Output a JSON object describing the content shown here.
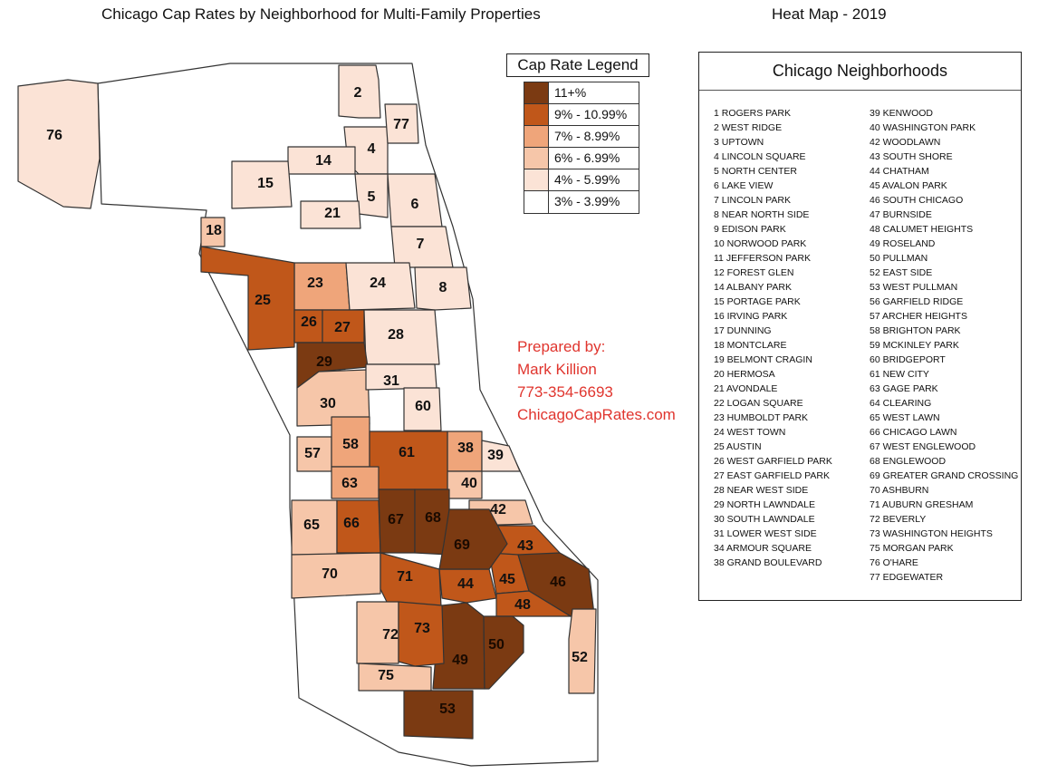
{
  "title": "Chicago Cap Rates by Neighborhood for Multi-Family Properties",
  "subtitle": "Heat Map - 2019",
  "legend": {
    "title": "Cap Rate Legend",
    "items": [
      {
        "label": "11+%",
        "color": "#7b3a12"
      },
      {
        "label": "9% - 10.99%",
        "color": "#c0571a"
      },
      {
        "label": "7% - 8.99%",
        "color": "#efa57a"
      },
      {
        "label": "6% - 6.99%",
        "color": "#f6c6a9"
      },
      {
        "label": "4% - 5.99%",
        "color": "#fbe3d6"
      },
      {
        "label": "3% - 3.99%",
        "color": "#ffffff"
      }
    ]
  },
  "prepared_by": {
    "label": "Prepared by:",
    "name": "Mark Killion",
    "phone": "773-354-6693",
    "website": "ChicagoCapRates.com"
  },
  "neighborhoods_panel": {
    "title": "Chicago Neighborhoods",
    "items": [
      "1 ROGERS PARK",
      "2 WEST RIDGE",
      "3 UPTOWN",
      "4 LINCOLN SQUARE",
      "5 NORTH CENTER",
      "6 LAKE VIEW",
      "7 LINCOLN PARK",
      "8 NEAR NORTH SIDE",
      "9 EDISON PARK",
      "10 NORWOOD PARK",
      "11 JEFFERSON PARK",
      "12 FOREST GLEN",
      "14 ALBANY PARK",
      "15 PORTAGE PARK",
      "16 IRVING PARK",
      "17 DUNNING",
      "18 MONTCLARE",
      "19 BELMONT CRAGIN",
      "20 HERMOSA",
      "21 AVONDALE",
      "22 LOGAN SQUARE",
      "23 HUMBOLDT PARK",
      "24 WEST TOWN",
      "25 AUSTIN",
      "26 WEST GARFIELD PARK",
      "27 EAST GARFIELD PARK",
      "28 NEAR WEST SIDE",
      "29 NORTH LAWNDALE",
      "30 SOUTH LAWNDALE",
      "31 LOWER WEST SIDE",
      "34 ARMOUR SQUARE",
      "38 GRAND BOULEVARD",
      "39 KENWOOD",
      "40 WASHINGTON PARK",
      "42 WOODLAWN",
      "43 SOUTH SHORE",
      "44 CHATHAM",
      "45 AVALON PARK",
      "46 SOUTH CHICAGO",
      "47 BURNSIDE",
      "48 CALUMET HEIGHTS",
      "49 ROSELAND",
      "50 PULLMAN",
      "52 EAST SIDE",
      "53 WEST PULLMAN",
      "56 GARFIELD RIDGE",
      "57 ARCHER HEIGHTS",
      "58 BRIGHTON PARK",
      "59 MCKINLEY PARK",
      "60 BRIDGEPORT",
      "61 NEW CITY",
      "63 GAGE PARK",
      "64 CLEARING",
      "65 WEST LAWN",
      "66 CHICAGO LAWN",
      "67 WEST ENGLEWOOD",
      "68 ENGLEWOOD",
      "69 GREATER GRAND CROSSING",
      "70 ASHBURN",
      "71 AUBURN GRESHAM",
      "72 BEVERLY",
      "73 WASHINGTON HEIGHTS",
      "75 MORGAN PARK",
      "76 O'HARE",
      "77 EDGEWATER"
    ]
  },
  "map_regions": [
    {
      "id": "2",
      "label": "2",
      "rate_class": "4% - 5.99%"
    },
    {
      "id": "4",
      "label": "4",
      "rate_class": "4% - 5.99%"
    },
    {
      "id": "5",
      "label": "5",
      "rate_class": "4% - 5.99%"
    },
    {
      "id": "6",
      "label": "6",
      "rate_class": "4% - 5.99%"
    },
    {
      "id": "7",
      "label": "7",
      "rate_class": "4% - 5.99%"
    },
    {
      "id": "8",
      "label": "8",
      "rate_class": "4% - 5.99%"
    },
    {
      "id": "14",
      "label": "14",
      "rate_class": "4% - 5.99%"
    },
    {
      "id": "15",
      "label": "15",
      "rate_class": "4% - 5.99%"
    },
    {
      "id": "18",
      "label": "18",
      "rate_class": "6% - 6.99%"
    },
    {
      "id": "21",
      "label": "21",
      "rate_class": "4% - 5.99%"
    },
    {
      "id": "23",
      "label": "23",
      "rate_class": "7% - 8.99%"
    },
    {
      "id": "24",
      "label": "24",
      "rate_class": "4% - 5.99%"
    },
    {
      "id": "25",
      "label": "25",
      "rate_class": "9% - 10.99%"
    },
    {
      "id": "26",
      "label": "26",
      "rate_class": "9% - 10.99%"
    },
    {
      "id": "27",
      "label": "27",
      "rate_class": "9% - 10.99%"
    },
    {
      "id": "28",
      "label": "28",
      "rate_class": "4% - 5.99%"
    },
    {
      "id": "29",
      "label": "29",
      "rate_class": "11+%"
    },
    {
      "id": "30",
      "label": "30",
      "rate_class": "6% - 6.99%"
    },
    {
      "id": "31",
      "label": "31",
      "rate_class": "4% - 5.99%"
    },
    {
      "id": "38",
      "label": "38",
      "rate_class": "7% - 8.99%"
    },
    {
      "id": "39",
      "label": "39",
      "rate_class": "4% - 5.99%"
    },
    {
      "id": "40",
      "label": "40",
      "rate_class": "6% - 6.99%"
    },
    {
      "id": "42",
      "label": "42",
      "rate_class": "6% - 6.99%"
    },
    {
      "id": "43",
      "label": "43",
      "rate_class": "9% - 10.99%"
    },
    {
      "id": "44",
      "label": "44",
      "rate_class": "9% - 10.99%"
    },
    {
      "id": "45",
      "label": "45",
      "rate_class": "9% - 10.99%"
    },
    {
      "id": "46",
      "label": "46",
      "rate_class": "11+%"
    },
    {
      "id": "48",
      "label": "48",
      "rate_class": "9% - 10.99%"
    },
    {
      "id": "49",
      "label": "49",
      "rate_class": "11+%"
    },
    {
      "id": "50",
      "label": "50",
      "rate_class": "11+%"
    },
    {
      "id": "52",
      "label": "52",
      "rate_class": "6% - 6.99%"
    },
    {
      "id": "53",
      "label": "53",
      "rate_class": "11+%"
    },
    {
      "id": "57",
      "label": "57",
      "rate_class": "6% - 6.99%"
    },
    {
      "id": "58",
      "label": "58",
      "rate_class": "7% - 8.99%"
    },
    {
      "id": "60",
      "label": "60",
      "rate_class": "4% - 5.99%"
    },
    {
      "id": "61",
      "label": "61",
      "rate_class": "9% - 10.99%"
    },
    {
      "id": "63",
      "label": "63",
      "rate_class": "7% - 8.99%"
    },
    {
      "id": "65",
      "label": "65",
      "rate_class": "6% - 6.99%"
    },
    {
      "id": "66",
      "label": "66",
      "rate_class": "9% - 10.99%"
    },
    {
      "id": "67",
      "label": "67",
      "rate_class": "11+%"
    },
    {
      "id": "68",
      "label": "68",
      "rate_class": "11+%"
    },
    {
      "id": "69",
      "label": "69",
      "rate_class": "11+%"
    },
    {
      "id": "70",
      "label": "70",
      "rate_class": "6% - 6.99%"
    },
    {
      "id": "71",
      "label": "71",
      "rate_class": "9% - 10.99%"
    },
    {
      "id": "72",
      "label": "72",
      "rate_class": "6% - 6.99%"
    },
    {
      "id": "73",
      "label": "73",
      "rate_class": "9% - 10.99%"
    },
    {
      "id": "75",
      "label": "75",
      "rate_class": "6% - 6.99%"
    },
    {
      "id": "76",
      "label": "76",
      "rate_class": "4% - 5.99%"
    },
    {
      "id": "77",
      "label": "77",
      "rate_class": "4% - 5.99%"
    }
  ]
}
